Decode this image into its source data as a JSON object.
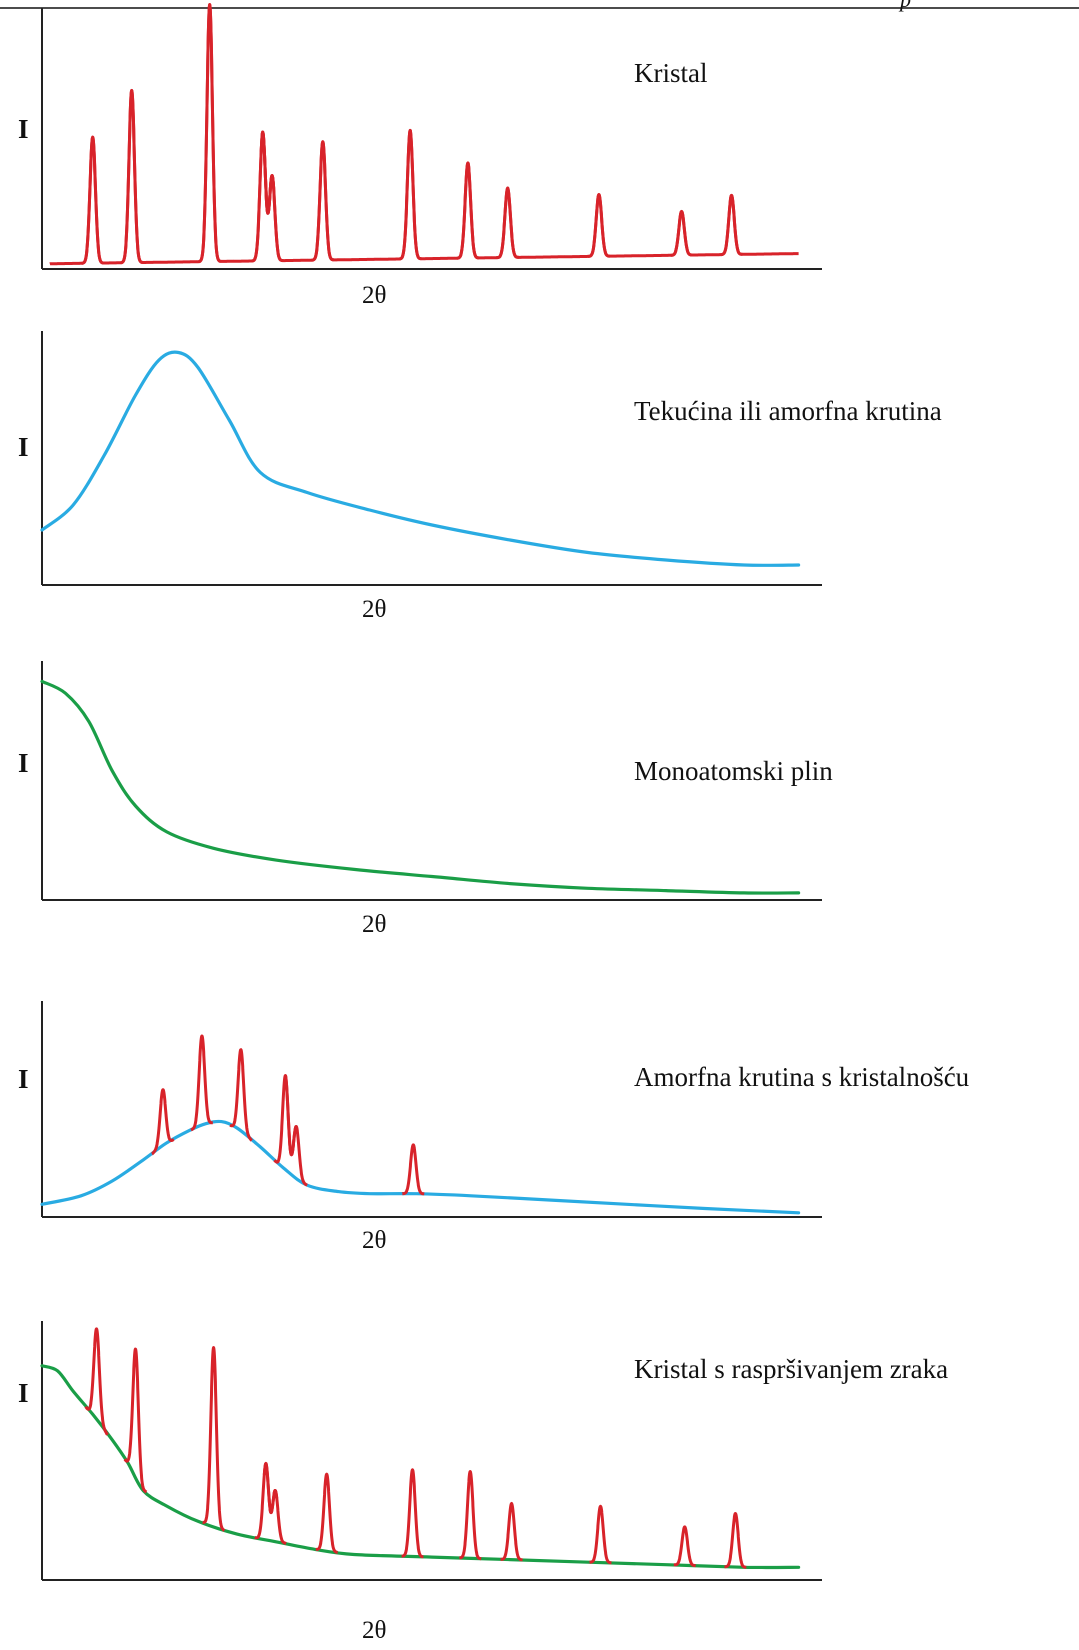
{
  "chart_data": [
    {
      "type": "line",
      "title": "Kristal",
      "ylabel": "I",
      "xlabel": "2θ",
      "xlim": [
        0,
        100
      ],
      "ylim": [
        0,
        1
      ],
      "baseline": {
        "shape": "flat",
        "level": 0.02,
        "end_level": 0.06
      },
      "series": [
        {
          "color": "#d8232a",
          "peaks": [
            {
              "x": 6.5,
              "h": 0.49
            },
            {
              "x": 11.5,
              "h": 0.67
            },
            {
              "x": 21.5,
              "h": 1.0
            },
            {
              "x": 28.3,
              "h": 0.5
            },
            {
              "x": 29.5,
              "h": 0.33
            },
            {
              "x": 36.0,
              "h": 0.46
            },
            {
              "x": 47.2,
              "h": 0.5
            },
            {
              "x": 54.6,
              "h": 0.37
            },
            {
              "x": 59.7,
              "h": 0.27
            },
            {
              "x": 71.4,
              "h": 0.24
            },
            {
              "x": 82.0,
              "h": 0.17
            },
            {
              "x": 88.4,
              "h": 0.23
            }
          ]
        }
      ]
    },
    {
      "type": "line",
      "title": "Tekućina ili amorfna krutina",
      "ylabel": "I",
      "xlabel": "2θ",
      "xlim": [
        0,
        100
      ],
      "ylim": [
        0,
        1
      ],
      "series": [
        {
          "color": "#29abe2",
          "points": [
            [
              0,
              0.22
            ],
            [
              4,
              0.32
            ],
            [
              8,
              0.52
            ],
            [
              12,
              0.76
            ],
            [
              15,
              0.9
            ],
            [
              17.5,
              0.93
            ],
            [
              20,
              0.87
            ],
            [
              24,
              0.66
            ],
            [
              28,
              0.45
            ],
            [
              34,
              0.37
            ],
            [
              42,
              0.3
            ],
            [
              50,
              0.24
            ],
            [
              60,
              0.18
            ],
            [
              70,
              0.13
            ],
            [
              80,
              0.1
            ],
            [
              90,
              0.08
            ],
            [
              97,
              0.08
            ]
          ]
        }
      ]
    },
    {
      "type": "line",
      "title": "Monoatomski plin",
      "ylabel": "I",
      "xlabel": "2θ",
      "xlim": [
        0,
        100
      ],
      "ylim": [
        0,
        1
      ],
      "series": [
        {
          "color": "#1a9e47",
          "points": [
            [
              0,
              0.93
            ],
            [
              3,
              0.88
            ],
            [
              6,
              0.76
            ],
            [
              9,
              0.55
            ],
            [
              12,
              0.4
            ],
            [
              16,
              0.29
            ],
            [
              22,
              0.22
            ],
            [
              30,
              0.17
            ],
            [
              40,
              0.13
            ],
            [
              50,
              0.1
            ],
            [
              60,
              0.07
            ],
            [
              70,
              0.05
            ],
            [
              80,
              0.04
            ],
            [
              90,
              0.03
            ],
            [
              97,
              0.03
            ]
          ]
        }
      ]
    },
    {
      "type": "line",
      "title": "Amorfna krutina s kristalnošću",
      "ylabel": "I",
      "xlabel": "2θ",
      "xlim": [
        0,
        100
      ],
      "ylim": [
        0,
        1
      ],
      "series": [
        {
          "color": "#29abe2",
          "name_hidden": true,
          "points": [
            [
              0,
              0.06
            ],
            [
              5,
              0.1
            ],
            [
              9,
              0.17
            ],
            [
              13,
              0.27
            ],
            [
              16,
              0.35
            ],
            [
              19,
              0.41
            ],
            [
              21,
              0.44
            ],
            [
              23,
              0.45
            ],
            [
              25,
              0.42
            ],
            [
              28,
              0.33
            ],
            [
              31,
              0.23
            ],
            [
              34,
              0.15
            ],
            [
              38,
              0.12
            ],
            [
              42,
              0.11
            ],
            [
              48,
              0.11
            ],
            [
              55,
              0.1
            ],
            [
              65,
              0.08
            ],
            [
              75,
              0.06
            ],
            [
              85,
              0.04
            ],
            [
              97,
              0.02
            ]
          ]
        },
        {
          "color": "#d8232a",
          "peaks_on_series": 0,
          "peaks": [
            {
              "x": 15.5,
              "h": 0.26
            },
            {
              "x": 20.5,
              "h": 0.42
            },
            {
              "x": 25.5,
              "h": 0.38
            },
            {
              "x": 31.2,
              "h": 0.44
            },
            {
              "x": 32.6,
              "h": 0.24
            },
            {
              "x": 47.6,
              "h": 0.23
            }
          ]
        }
      ]
    },
    {
      "type": "line",
      "title": "Kristal s raspršivanjem zraka",
      "ylabel": "I",
      "xlabel": "2θ",
      "xlim": [
        0,
        100
      ],
      "ylim": [
        0,
        1
      ],
      "series": [
        {
          "color": "#1a9e47",
          "points": [
            [
              0,
              0.84
            ],
            [
              2,
              0.82
            ],
            [
              4,
              0.74
            ],
            [
              6.5,
              0.65
            ],
            [
              9,
              0.55
            ],
            [
              11,
              0.46
            ],
            [
              13,
              0.35
            ],
            [
              16,
              0.29
            ],
            [
              20,
              0.23
            ],
            [
              25,
              0.18
            ],
            [
              30,
              0.15
            ],
            [
              35,
              0.12
            ],
            [
              40,
              0.1
            ],
            [
              50,
              0.09
            ],
            [
              60,
              0.08
            ],
            [
              70,
              0.07
            ],
            [
              80,
              0.06
            ],
            [
              90,
              0.05
            ],
            [
              97,
              0.05
            ]
          ]
        },
        {
          "color": "#d8232a",
          "peaks_on_series": 0,
          "peaks": [
            {
              "x": 7.0,
              "h": 0.35
            },
            {
              "x": 12.0,
              "h": 0.5
            },
            {
              "x": 22.0,
              "h": 0.7
            },
            {
              "x": 28.7,
              "h": 0.3
            },
            {
              "x": 29.9,
              "h": 0.2
            },
            {
              "x": 36.5,
              "h": 0.3
            },
            {
              "x": 47.5,
              "h": 0.34
            },
            {
              "x": 54.9,
              "h": 0.34
            },
            {
              "x": 60.2,
              "h": 0.22
            },
            {
              "x": 71.6,
              "h": 0.22
            },
            {
              "x": 82.4,
              "h": 0.15
            },
            {
              "x": 88.9,
              "h": 0.21
            }
          ]
        }
      ]
    }
  ]
}
